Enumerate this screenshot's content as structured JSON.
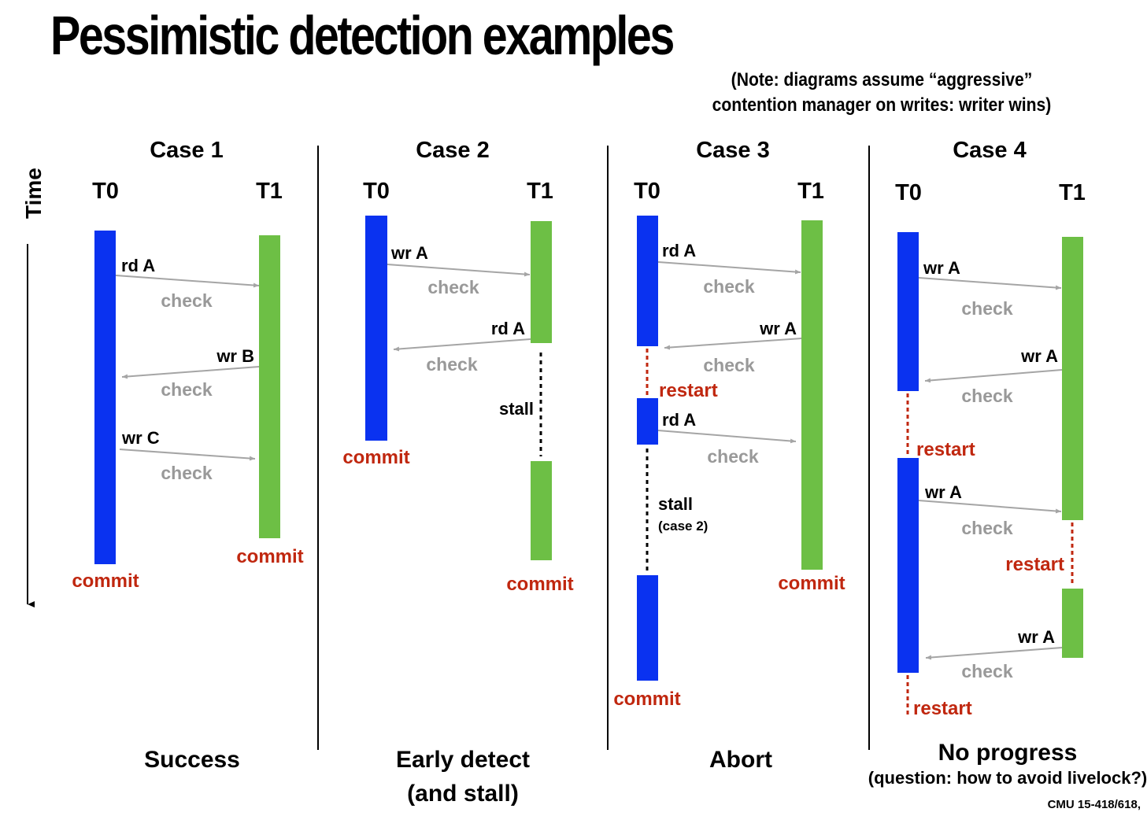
{
  "title": "Pessimistic detection examples",
  "note": "(Note: diagrams assume “aggressive” contention manager on writes: writer wins)",
  "time_label": "Time",
  "footer": "CMU 15-418/618,",
  "colors": {
    "t0": "#0a32f0",
    "t1": "#6dbf45",
    "red": "#c0270f",
    "check": "#999999",
    "arrow": "#a5a5a5"
  },
  "cases": [
    {
      "title": "Case 1",
      "t0": "T0",
      "t1": "T1",
      "ops": {
        "a": "rd A",
        "b": "wr B",
        "c": "wr C"
      },
      "checks": [
        "check",
        "check",
        "check"
      ],
      "commit_t0": "commit",
      "commit_t1": "commit",
      "outcome": "Success"
    },
    {
      "title": "Case 2",
      "t0": "T0",
      "t1": "T1",
      "ops": {
        "a": "wr A",
        "b": "rd A"
      },
      "checks": [
        "check",
        "check"
      ],
      "stall": "stall",
      "commit_t0": "commit",
      "commit_t1": "commit",
      "outcome": "Early detect",
      "outcome_sub": "(and stall)"
    },
    {
      "title": "Case 3",
      "t0": "T0",
      "t1": "T1",
      "ops": {
        "a": "rd A",
        "b": "wr A",
        "c": "rd A"
      },
      "checks": [
        "check",
        "check",
        "check"
      ],
      "restart": "restart",
      "stall": "stall",
      "stall_note": "(case 2)",
      "commit_t0": "commit",
      "commit_t1": "commit",
      "outcome": "Abort"
    },
    {
      "title": "Case 4",
      "t0": "T0",
      "t1": "T1",
      "ops": {
        "a": "wr A",
        "b": "wr A",
        "c": "wr A",
        "d": "wr A"
      },
      "checks": [
        "check",
        "check",
        "check",
        "check"
      ],
      "restarts": [
        "restart",
        "restart",
        "restart"
      ],
      "outcome": "No progress",
      "outcome_sub": "(question: how to avoid livelock?)"
    }
  ]
}
